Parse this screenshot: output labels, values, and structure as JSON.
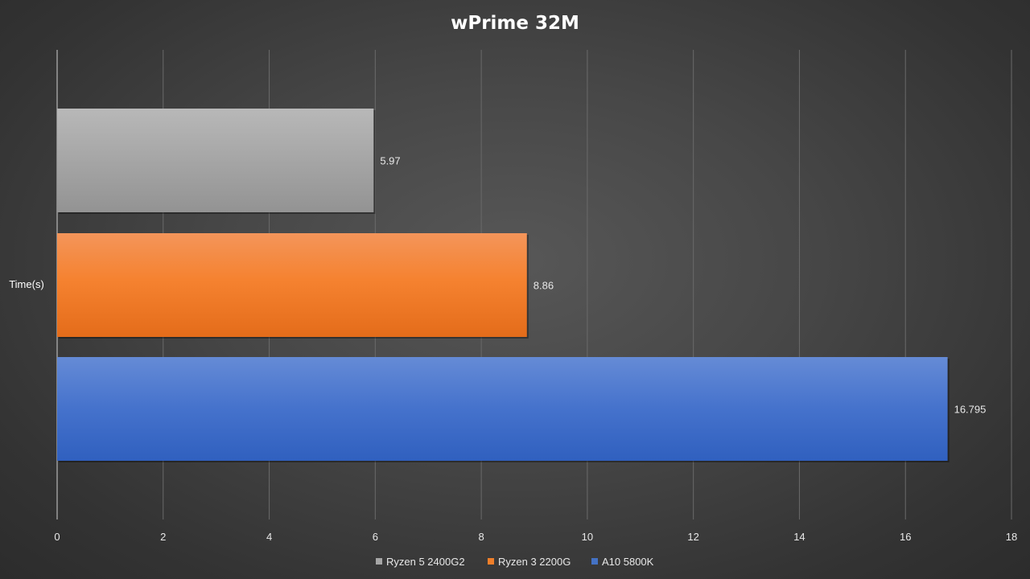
{
  "chart_data": {
    "type": "bar",
    "orientation": "horizontal",
    "title": "wPrime 32M",
    "categories": [
      "Time(s)"
    ],
    "series": [
      {
        "name": "Ryzen 5 2400G2",
        "values": [
          5.97
        ],
        "label": "5.97",
        "color": "#a6a6a6"
      },
      {
        "name": "Ryzen 3 2200G",
        "values": [
          8.86
        ],
        "label": "8.86",
        "color": "#f07f2a"
      },
      {
        "name": "A10 5800K",
        "values": [
          16.795
        ],
        "label": "16.795",
        "color": "#4472c4"
      }
    ],
    "xlim": [
      0,
      18
    ],
    "xticks": [
      "0",
      "2",
      "4",
      "6",
      "8",
      "10",
      "12",
      "14",
      "16",
      "18"
    ],
    "grid": true,
    "legend_position": "bottom"
  }
}
